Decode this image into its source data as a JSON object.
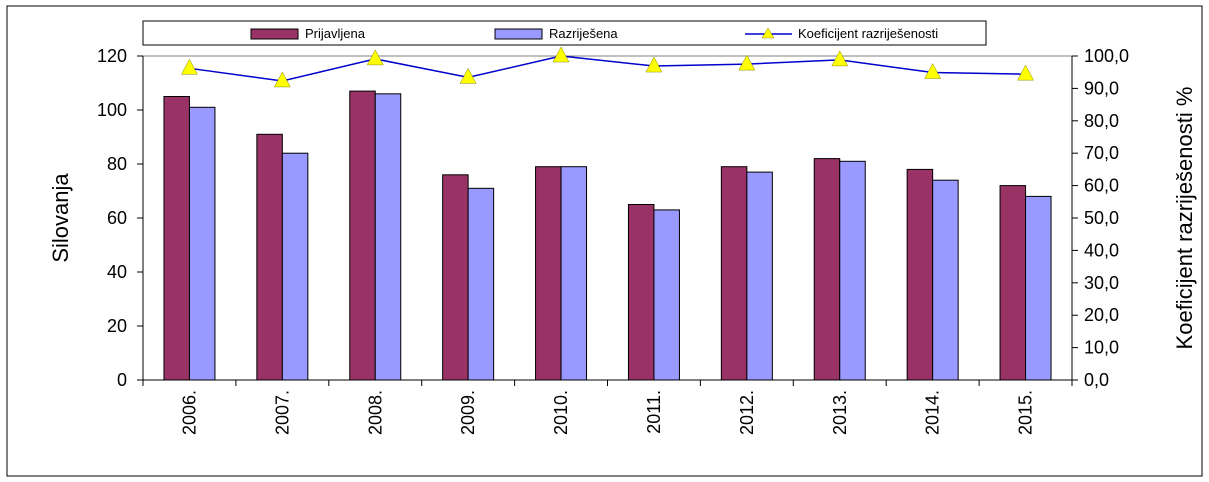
{
  "chart_data": {
    "type": "bar",
    "categories": [
      "2006.",
      "2007.",
      "2008.",
      "2009.",
      "2010.",
      "2011.",
      "2012.",
      "2013.",
      "2014.",
      "2015."
    ],
    "series": [
      {
        "name": "Prijavljena",
        "kind": "bar",
        "axis": "left",
        "color": "#993366",
        "values": [
          105,
          91,
          107,
          76,
          79,
          65,
          79,
          82,
          78,
          72
        ]
      },
      {
        "name": "Razriješena",
        "kind": "bar",
        "axis": "left",
        "color": "#9999ff",
        "values": [
          101,
          84,
          106,
          71,
          79,
          63,
          77,
          81,
          74,
          68
        ]
      },
      {
        "name": "Koeficijent razriješenosti",
        "kind": "line",
        "axis": "right",
        "color": "#0000cc",
        "marker_color": "#ffff00",
        "marker": "triangle",
        "values": [
          96.2,
          92.3,
          99.1,
          93.4,
          100.0,
          96.9,
          97.5,
          98.8,
          94.9,
          94.4
        ]
      }
    ],
    "ylabel": "Silovanja",
    "ylim": [
      0,
      120
    ],
    "yticks": [
      "0",
      "20",
      "40",
      "60",
      "80",
      "100",
      "120"
    ],
    "y2label": "Koeficijent razriješenosti %",
    "y2lim": [
      0,
      100
    ],
    "y2ticks": [
      "0,0",
      "10,0",
      "20,0",
      "30,0",
      "40,0",
      "50,0",
      "60,0",
      "70,0",
      "80,0",
      "90,0",
      "100,0"
    ],
    "grid": false,
    "legend_position": "top"
  }
}
